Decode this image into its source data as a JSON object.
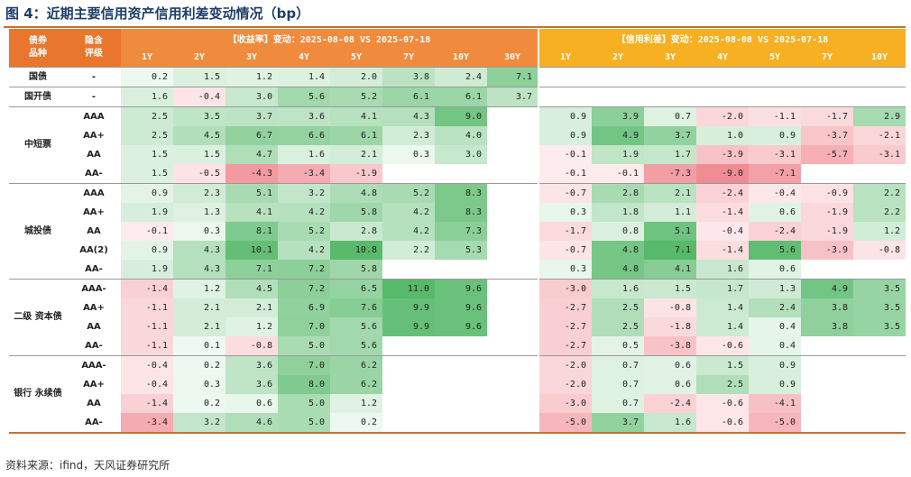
{
  "title": "图 4：近期主要信用资产信用利差变动情况（bp）",
  "header": {
    "bond_label": "债券\n品种",
    "rating_label": "隐含\n评级",
    "yield_title": "【收益率】变动：2025-08-08 VS 2025-07-18",
    "spread_title": "【信用利差】变动：2025-08-08 VS 2025-07-18",
    "yield_tenors": [
      "1Y",
      "2Y",
      "3Y",
      "4Y",
      "5Y",
      "7Y",
      "10Y",
      "30Y"
    ],
    "spread_tenors": [
      "1Y",
      "2Y",
      "3Y",
      "4Y",
      "5Y",
      "7Y",
      "10Y"
    ]
  },
  "groups": [
    {
      "name": "国债",
      "rows": [
        {
          "rating": "-",
          "yield": [
            0.2,
            1.5,
            1.2,
            1.4,
            2.0,
            3.8,
            2.4,
            7.1
          ],
          "spread": [
            null,
            null,
            null,
            null,
            null,
            null,
            null
          ]
        }
      ]
    },
    {
      "name": "国开债",
      "rows": [
        {
          "rating": "-",
          "yield": [
            1.6,
            -0.4,
            3.0,
            5.6,
            5.2,
            6.1,
            6.1,
            3.7
          ],
          "spread": [
            null,
            null,
            null,
            null,
            null,
            null,
            null
          ]
        }
      ]
    },
    {
      "name": "中短票",
      "rows": [
        {
          "rating": "AAA",
          "yield": [
            2.5,
            3.5,
            3.7,
            3.6,
            4.1,
            4.3,
            9.0,
            null
          ],
          "spread": [
            0.9,
            3.9,
            0.7,
            -2.0,
            -1.1,
            -1.7,
            2.9
          ]
        },
        {
          "rating": "AA+",
          "yield": [
            2.5,
            4.5,
            6.7,
            6.6,
            6.1,
            2.3,
            4.0,
            null
          ],
          "spread": [
            0.9,
            4.9,
            3.7,
            1.0,
            0.9,
            -3.7,
            -2.1
          ]
        },
        {
          "rating": "AA",
          "yield": [
            1.5,
            1.5,
            4.7,
            1.6,
            2.1,
            0.3,
            3.0,
            null
          ],
          "spread": [
            -0.1,
            1.9,
            1.7,
            -3.9,
            -3.1,
            -5.7,
            -3.1
          ]
        },
        {
          "rating": "AA-",
          "yield": [
            1.5,
            -0.5,
            -4.3,
            -3.4,
            -1.9,
            null,
            null,
            null
          ],
          "spread": [
            -0.1,
            -0.1,
            -7.3,
            -9.0,
            -7.1,
            null,
            null
          ]
        }
      ]
    },
    {
      "name": "城投债",
      "rows": [
        {
          "rating": "AAA",
          "yield": [
            0.9,
            2.3,
            5.1,
            3.2,
            4.8,
            5.2,
            8.3,
            null
          ],
          "spread": [
            -0.7,
            2.8,
            2.1,
            -2.4,
            -0.4,
            -0.9,
            2.2
          ]
        },
        {
          "rating": "AA+",
          "yield": [
            1.9,
            1.3,
            4.1,
            4.2,
            5.8,
            4.2,
            8.3,
            null
          ],
          "spread": [
            0.3,
            1.8,
            1.1,
            -1.4,
            0.6,
            -1.9,
            2.2
          ]
        },
        {
          "rating": "AA",
          "yield": [
            -0.1,
            0.3,
            8.1,
            5.2,
            2.8,
            4.2,
            7.3,
            null
          ],
          "spread": [
            -1.7,
            0.8,
            5.1,
            -0.4,
            -2.4,
            -1.9,
            1.2
          ]
        },
        {
          "rating": "AA(2)",
          "yield": [
            0.9,
            4.3,
            10.1,
            4.2,
            10.8,
            2.2,
            5.3,
            null
          ],
          "spread": [
            -0.7,
            4.8,
            7.1,
            -1.4,
            5.6,
            -3.9,
            -0.8
          ]
        },
        {
          "rating": "AA-",
          "yield": [
            1.9,
            4.3,
            7.1,
            7.2,
            5.8,
            null,
            null,
            null
          ],
          "spread": [
            0.3,
            4.8,
            4.1,
            1.6,
            0.6,
            null,
            null
          ]
        }
      ]
    },
    {
      "name": "二级\n资本债",
      "rows": [
        {
          "rating": "AAA-",
          "yield": [
            -1.4,
            1.2,
            4.5,
            7.2,
            6.5,
            11.0,
            9.6,
            null
          ],
          "spread": [
            -3.0,
            1.6,
            1.5,
            1.7,
            1.3,
            4.9,
            3.5
          ]
        },
        {
          "rating": "AA+",
          "yield": [
            -1.1,
            2.1,
            2.1,
            6.9,
            7.6,
            9.9,
            9.6,
            null
          ],
          "spread": [
            -2.7,
            2.5,
            -0.8,
            1.4,
            2.4,
            3.8,
            3.5
          ]
        },
        {
          "rating": "AA",
          "yield": [
            -1.1,
            2.1,
            1.2,
            7.0,
            5.6,
            9.9,
            9.6,
            null
          ],
          "spread": [
            -2.7,
            2.5,
            -1.8,
            1.4,
            0.4,
            3.8,
            3.5
          ]
        },
        {
          "rating": "AA-",
          "yield": [
            -1.1,
            0.1,
            -0.8,
            5.0,
            5.6,
            null,
            null,
            null
          ],
          "spread": [
            -2.7,
            0.5,
            -3.8,
            -0.6,
            0.4,
            null,
            null
          ]
        }
      ]
    },
    {
      "name": "银行\n永续债",
      "rows": [
        {
          "rating": "AAA-",
          "yield": [
            -0.4,
            0.2,
            3.6,
            7.0,
            6.2,
            null,
            null,
            null
          ],
          "spread": [
            -2.0,
            0.7,
            0.6,
            1.5,
            0.9,
            null,
            null
          ]
        },
        {
          "rating": "AA+",
          "yield": [
            -0.4,
            0.3,
            3.6,
            8.0,
            6.2,
            null,
            null,
            null
          ],
          "spread": [
            -2.0,
            0.7,
            0.6,
            2.5,
            0.9,
            null,
            null
          ]
        },
        {
          "rating": "AA",
          "yield": [
            -1.4,
            0.2,
            0.6,
            5.0,
            1.2,
            null,
            null,
            null
          ],
          "spread": [
            -3.0,
            0.7,
            -2.4,
            -0.6,
            -4.1,
            null,
            null
          ]
        },
        {
          "rating": "AA-",
          "yield": [
            -3.4,
            3.2,
            4.6,
            5.0,
            0.2,
            null,
            null,
            null
          ],
          "spread": [
            -5.0,
            3.7,
            1.6,
            -0.6,
            -5.0,
            null,
            null
          ]
        }
      ]
    }
  ],
  "source": "资料来源：ifind，天风证券研究所",
  "colors": {
    "header_orange": "#e8762d",
    "header_yield": "#f08a3c",
    "header_spread": "#f6b021",
    "positive": "#57b96a",
    "negative": "#f08c94"
  }
}
